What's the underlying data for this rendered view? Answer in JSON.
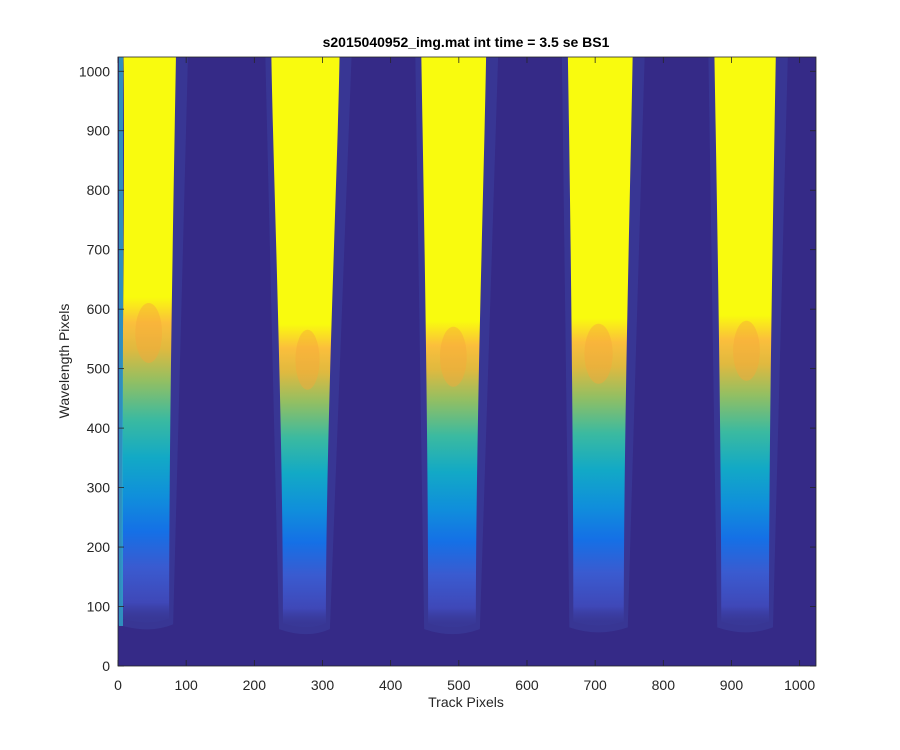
{
  "chart_data": {
    "type": "heatmap",
    "title": "s2015040952_img.mat int time = 3.5 se   BS1",
    "xlabel": "Track Pixels",
    "ylabel": "Wavelength Pixels",
    "xlim": [
      0,
      1024
    ],
    "ylim": [
      0,
      1024
    ],
    "xticks": [
      0,
      100,
      200,
      300,
      400,
      500,
      600,
      700,
      800,
      900,
      1000
    ],
    "yticks": [
      0,
      100,
      200,
      300,
      400,
      500,
      600,
      700,
      800,
      900,
      1000
    ],
    "colormap": "parula",
    "background_color": "#352a87",
    "saturated_color": "#f9fb0e",
    "bands": [
      {
        "center_x": 45,
        "top_x": [
          8,
          85
        ],
        "bottom_x": [
          5,
          75
        ],
        "bottom_y": 80,
        "saturation_y": 620
      },
      {
        "center_x": 278,
        "top_x": [
          225,
          325
        ],
        "bottom_x": [
          242,
          305
        ],
        "bottom_y": 72,
        "saturation_y": 575
      },
      {
        "center_x": 492,
        "top_x": [
          445,
          540
        ],
        "bottom_x": [
          455,
          525
        ],
        "bottom_y": 72,
        "saturation_y": 580
      },
      {
        "center_x": 705,
        "top_x": [
          660,
          755
        ],
        "bottom_x": [
          668,
          742
        ],
        "bottom_y": 75,
        "saturation_y": 585
      },
      {
        "center_x": 922,
        "top_x": [
          875,
          965
        ],
        "bottom_x": [
          885,
          955
        ],
        "bottom_y": 75,
        "saturation_y": 590
      }
    ]
  }
}
